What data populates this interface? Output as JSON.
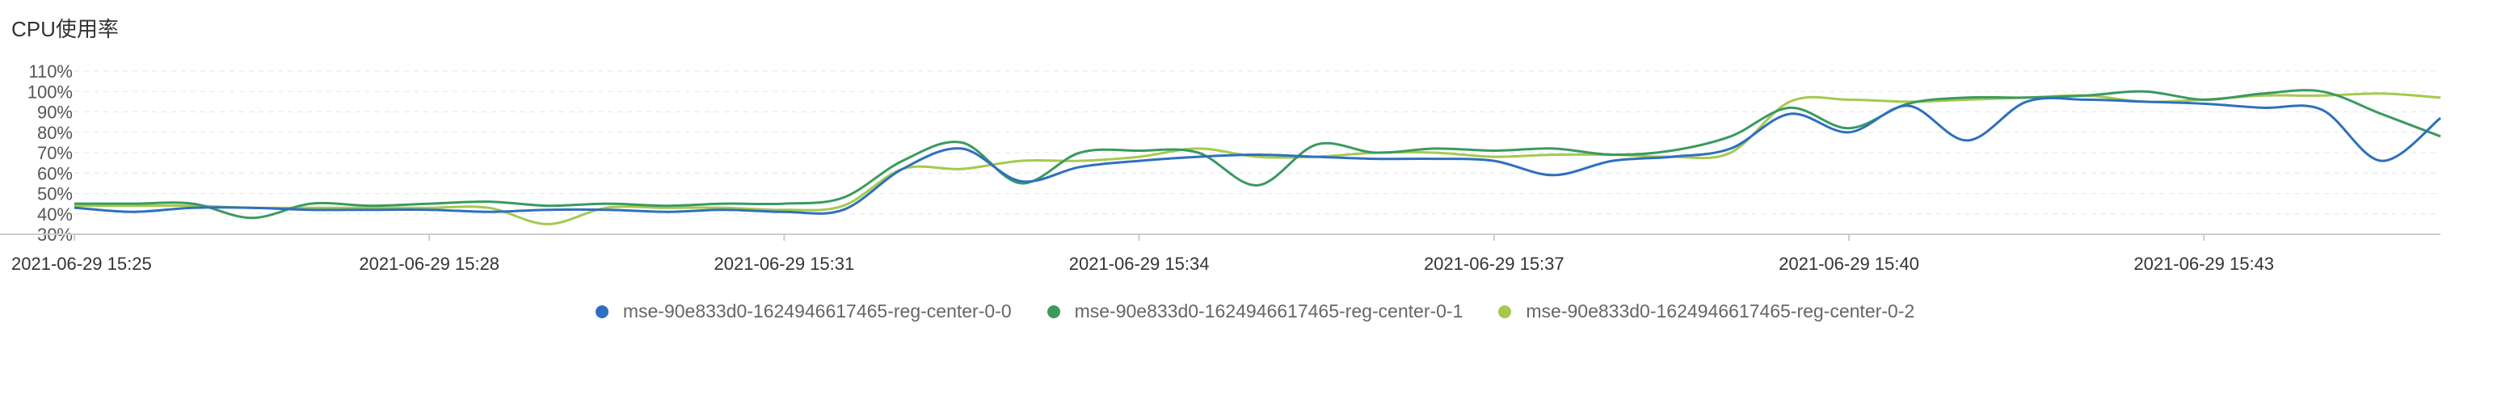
{
  "chart_data": {
    "type": "line",
    "title": "CPU使用率",
    "ylim": [
      30,
      110
    ],
    "yticks": [
      "30%",
      "40%",
      "50%",
      "60%",
      "70%",
      "80%",
      "90%",
      "100%",
      "110%"
    ],
    "ytick_values": [
      30,
      40,
      50,
      60,
      70,
      80,
      90,
      100,
      110
    ],
    "xticks": [
      "2021-06-29 15:25",
      "2021-06-29 15:28",
      "2021-06-29 15:31",
      "2021-06-29 15:34",
      "2021-06-29 15:37",
      "2021-06-29 15:40",
      "2021-06-29 15:43"
    ],
    "grid": true,
    "legend": "bottom",
    "x": [
      "15:25:00",
      "15:25:30",
      "15:26:00",
      "15:26:30",
      "15:27:00",
      "15:27:30",
      "15:28:00",
      "15:28:30",
      "15:29:00",
      "15:29:30",
      "15:30:00",
      "15:30:30",
      "15:31:00",
      "15:31:30",
      "15:32:00",
      "15:32:30",
      "15:33:00",
      "15:33:30",
      "15:34:00",
      "15:34:30",
      "15:35:00",
      "15:35:30",
      "15:36:00",
      "15:36:30",
      "15:37:00",
      "15:37:30",
      "15:38:00",
      "15:38:30",
      "15:39:00",
      "15:39:30",
      "15:40:00",
      "15:40:30",
      "15:41:00",
      "15:41:30",
      "15:42:00",
      "15:42:30",
      "15:43:00",
      "15:43:30",
      "15:44:00",
      "15:44:30",
      "15:45:00"
    ],
    "series": [
      {
        "name": "mse-90e833d0-1624946617465-reg-center-0-0",
        "color": "#2f6fbf",
        "values": [
          43,
          41,
          43,
          43,
          42,
          42,
          42,
          41,
          42,
          42,
          41,
          42,
          41,
          42,
          62,
          72,
          56,
          63,
          66,
          68,
          69,
          68,
          67,
          67,
          66,
          59,
          66,
          68,
          72,
          89,
          80,
          93,
          76,
          95,
          96,
          95,
          94,
          92,
          91,
          66,
          87
        ]
      },
      {
        "name": "mse-90e833d0-1624946617465-reg-center-0-1",
        "color": "#3a9a5f",
        "values": [
          45,
          45,
          45,
          38,
          45,
          44,
          45,
          46,
          44,
          45,
          44,
          45,
          45,
          48,
          66,
          75,
          55,
          70,
          71,
          70,
          54,
          74,
          70,
          72,
          71,
          72,
          69,
          71,
          78,
          92,
          82,
          94,
          97,
          97,
          98,
          100,
          96,
          99,
          100,
          89,
          78
        ]
      },
      {
        "name": "mse-90e833d0-1624946617465-reg-center-0-2",
        "color": "#a5c94e",
        "values": [
          44,
          44,
          44,
          43,
          43,
          43,
          43,
          43,
          35,
          43,
          43,
          43,
          42,
          44,
          62,
          62,
          66,
          66,
          68,
          72,
          68,
          68,
          70,
          70,
          68,
          69,
          69,
          68,
          70,
          95,
          96,
          95,
          96,
          97,
          98,
          95,
          96,
          98,
          98,
          99,
          97
        ]
      }
    ]
  }
}
